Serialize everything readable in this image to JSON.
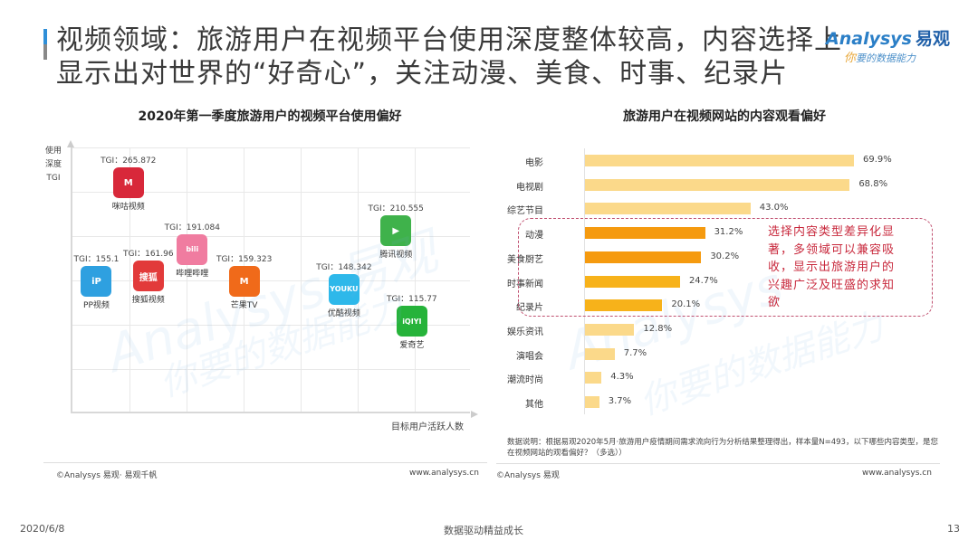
{
  "header": {
    "title": "视频领域：旅游用户在视频平台使用深度整体较高，内容选择上显示出对世界的“好奇心”，关注动漫、美食、时事、纪录片",
    "logo_brand": "nalysys",
    "logo_brand_prefix": "A",
    "logo_brand_cn": "易观",
    "logo_slogan_first": "你",
    "logo_slogan_rest": "要的数据能力"
  },
  "left_panel": {
    "title": "2020年第一季度旅游用户的视频平台使用偏好",
    "y_axis_label": [
      "使用",
      "深度",
      "TGI"
    ],
    "x_axis_label": "目标用户活跃人数",
    "source": "©Analysys 易观· 易观千帆",
    "url": "www.analysys.cn"
  },
  "right_panel": {
    "title": "旅游用户在视频网站的内容观看偏好",
    "callout": "选择内容类型差异化显著，多领域可以兼容吸收，显示出旅游用户的兴趣广泛及旺盛的求知欲",
    "note": "数据说明：根据易观2020年5月·旅游用户疫情期间需求流向行为分析结果整理得出，样本量N=493，以下哪些内容类型，是您在视频网站的观看偏好？（多选））",
    "source": "©Analysys 易观",
    "url": "www.analysys.cn"
  },
  "footer": {
    "date": "2020/6/8",
    "slogan": "数据驱动精益成长",
    "page": "13"
  },
  "colors": {
    "bar_light": "#fbd98a",
    "bar_dark_1": "#f59a0f",
    "bar_dark_2": "#f7b21a",
    "callout_red": "#c8283c",
    "accent_blue": "#2f8fd8"
  },
  "chart_data": [
    {
      "type": "scatter",
      "title": "2020年第一季度旅游用户的视频平台使用偏好",
      "xlabel": "目标用户活跃人数",
      "ylabel": "使用深度TGI",
      "grid": true,
      "points": [
        {
          "name": "咪咕视频",
          "tgi_label": "TGI：265.872",
          "tgi": 265.872,
          "x_pct": 14,
          "y_pct": 88,
          "icon": "migu-icon",
          "color": "#d8283a",
          "glyph": "M"
        },
        {
          "name": "哔哩哔哩",
          "tgi_label": "TGI：191.084",
          "tgi": 191.084,
          "x_pct": 30,
          "y_pct": 63,
          "icon": "bilibili-icon",
          "color": "#f07ca0",
          "glyph": "bili"
        },
        {
          "name": "搜狐视频",
          "tgi_label": "TGI：161.96",
          "tgi": 161.96,
          "x_pct": 19,
          "y_pct": 53,
          "icon": "sohu-icon",
          "color": "#e23a3a",
          "glyph": "搜狐"
        },
        {
          "name": "PP视频",
          "tgi_label": "TGI：155.1",
          "tgi": 155.1,
          "x_pct": 6,
          "y_pct": 51,
          "icon": "pptv-icon",
          "color": "#2ea0e0",
          "glyph": "iP"
        },
        {
          "name": "芒果TV",
          "tgi_label": "TGI：159.323",
          "tgi": 159.323,
          "x_pct": 43,
          "y_pct": 51,
          "icon": "mgtv-icon",
          "color": "#f06a1a",
          "glyph": "M"
        },
        {
          "name": "腾讯视频",
          "tgi_label": "TGI：210.555",
          "tgi": 210.555,
          "x_pct": 81,
          "y_pct": 70,
          "icon": "tencent-video-icon",
          "color": "#3fb24b",
          "glyph": "▶"
        },
        {
          "name": "优酷视频",
          "tgi_label": "TGI：148.342",
          "tgi": 148.342,
          "x_pct": 68,
          "y_pct": 48,
          "icon": "youku-icon",
          "color": "#2db8ea",
          "glyph": "YOUKU"
        },
        {
          "name": "爱奇艺",
          "tgi_label": "TGI：115.77",
          "tgi": 115.77,
          "x_pct": 85,
          "y_pct": 36,
          "icon": "iqiyi-icon",
          "color": "#26b33a",
          "glyph": "iQIYI"
        }
      ]
    },
    {
      "type": "bar",
      "orientation": "horizontal",
      "title": "旅游用户在视频网站的内容观看偏好",
      "xlim": [
        0,
        80
      ],
      "categories": [
        "电影",
        "电视剧",
        "综艺节目",
        "动漫",
        "美食厨艺",
        "时事新闻",
        "纪录片",
        "娱乐资讯",
        "演唱会",
        "潮流时尚",
        "其他"
      ],
      "values": [
        69.9,
        68.8,
        43.0,
        31.2,
        30.2,
        24.7,
        20.1,
        12.8,
        7.7,
        4.3,
        3.7
      ],
      "labels": [
        "69.9%",
        "68.8%",
        "43.0%",
        "31.2%",
        "30.2%",
        "24.7%",
        "20.1%",
        "12.8%",
        "7.7%",
        "4.3%",
        "3.7%"
      ],
      "highlighted": [
        "动漫",
        "美食厨艺",
        "时事新闻",
        "纪录片"
      ]
    }
  ]
}
